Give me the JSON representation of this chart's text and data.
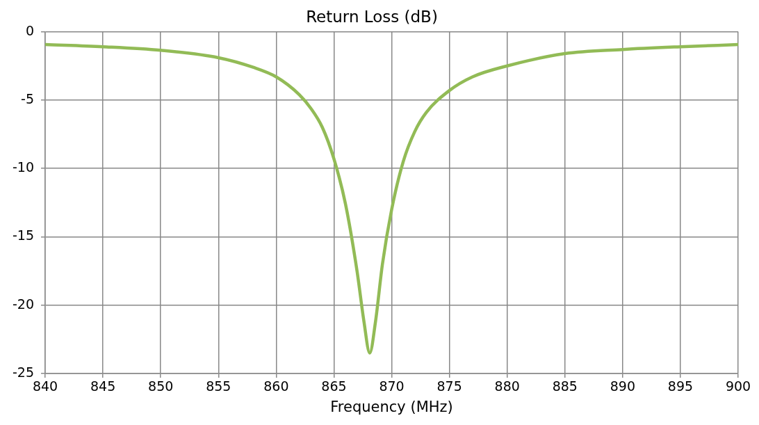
{
  "chart_data": {
    "type": "line",
    "title": "Return Loss (dB)",
    "xlabel": "Frequency (MHz)",
    "x": [
      840,
      845,
      850,
      855,
      858,
      860,
      862,
      863,
      864,
      865,
      866,
      867,
      867.6,
      868.1,
      868.6,
      869.2,
      870,
      871,
      872,
      873,
      875,
      877,
      880,
      885,
      890,
      895,
      900
    ],
    "series": [
      {
        "color": "#92bb56",
        "values": [
          -0.94,
          -1.1,
          -1.36,
          -1.9,
          -2.6,
          -3.3,
          -4.6,
          -5.6,
          -7.0,
          -9.3,
          -12.6,
          -17.5,
          -21.2,
          -23.5,
          -21.2,
          -17.0,
          -13.0,
          -9.5,
          -7.3,
          -5.9,
          -4.3,
          -3.3,
          -2.5,
          -1.6,
          -1.3,
          -1.1,
          -0.94
        ]
      }
    ],
    "xlim": [
      840,
      900
    ],
    "xticks": [
      840,
      845,
      850,
      855,
      860,
      865,
      870,
      875,
      880,
      885,
      890,
      895,
      900
    ],
    "ylim": [
      -25,
      0
    ],
    "yticks": [
      -25,
      -20,
      -15,
      -10,
      -5,
      0
    ],
    "grid": true,
    "legend": false,
    "marker": "none",
    "line_style": "solid"
  }
}
